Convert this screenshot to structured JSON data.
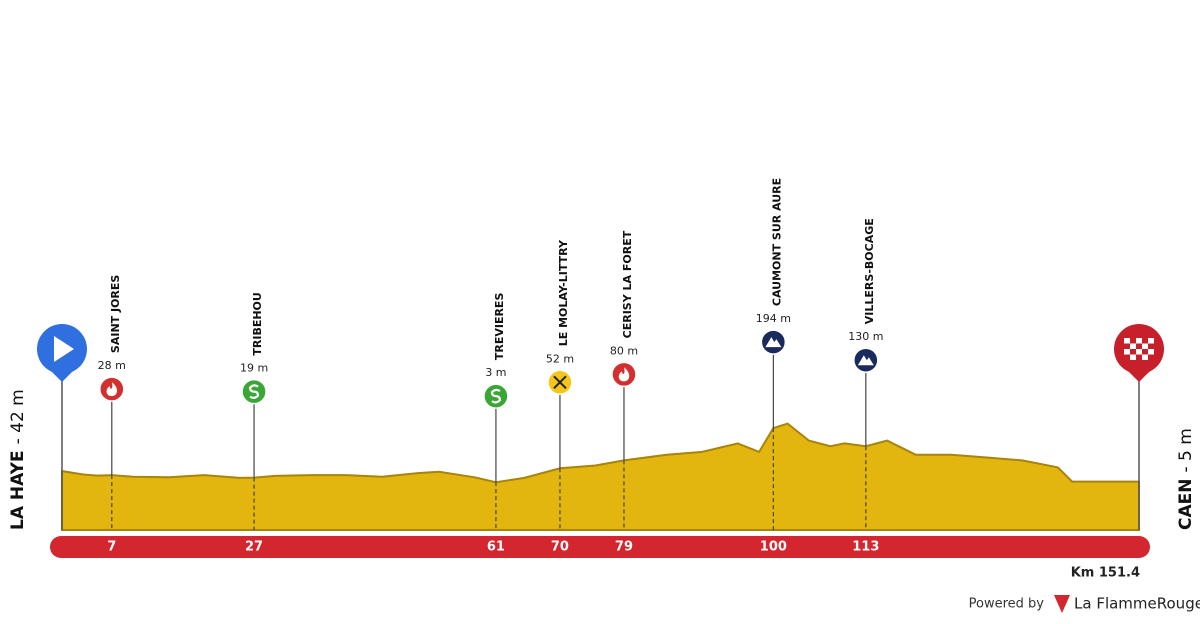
{
  "chart_data": {
    "type": "profile",
    "start": {
      "name": "LA HAYE",
      "elevation_label": "- 42 m"
    },
    "finish": {
      "name": "CAEN",
      "elevation_label": "- 5 m"
    },
    "distance_label": "Km 151.4",
    "x": [
      0,
      3,
      5,
      7,
      10,
      15,
      20,
      25,
      27,
      30,
      35,
      40,
      45,
      50,
      53,
      58,
      61,
      65,
      70,
      75,
      79,
      85,
      90,
      95,
      98,
      100,
      102,
      105,
      108,
      110,
      113,
      116,
      120,
      125,
      130,
      135,
      140,
      142,
      145,
      151.4
    ],
    "values": [
      42,
      30,
      26,
      28,
      22,
      20,
      28,
      18,
      19,
      25,
      28,
      28,
      22,
      35,
      40,
      20,
      3,
      18,
      52,
      62,
      80,
      100,
      110,
      140,
      110,
      194,
      210,
      150,
      130,
      140,
      130,
      150,
      100,
      100,
      90,
      80,
      55,
      5,
      5,
      5
    ],
    "color": "#e3b50f",
    "edge_color": "#a8840a",
    "waypoints": [
      {
        "name": "SAINT JORES",
        "km": 7,
        "elevation": 28,
        "elevation_label": "28 m",
        "icon": "flame",
        "color": "#d32f2f"
      },
      {
        "name": "TRIBEHOU",
        "km": 27,
        "elevation": 19,
        "elevation_label": "19 m",
        "icon": "sprint",
        "color": "#3aa635"
      },
      {
        "name": "TREVIERES",
        "km": 61,
        "elevation": 3,
        "elevation_label": "3 m",
        "icon": "sprint",
        "color": "#3aa635"
      },
      {
        "name": "LE MOLAY-LITTRY",
        "km": 70,
        "elevation": 52,
        "elevation_label": "52 m",
        "icon": "feed",
        "color": "#f5c518"
      },
      {
        "name": "CERISY LA FORET",
        "km": 79,
        "elevation": 80,
        "elevation_label": "80 m",
        "icon": "flame",
        "color": "#d32f2f"
      },
      {
        "name": "CAUMONT SUR AURE",
        "km": 100,
        "elevation": 194,
        "elevation_label": "194 m",
        "icon": "climb",
        "color": "#1b2a5e"
      },
      {
        "name": "Villers-Bocage",
        "km": 113,
        "elevation": 130,
        "elevation_label": "130 m",
        "icon": "climb",
        "color": "#1b2a5e"
      }
    ]
  },
  "footer": {
    "powered": "Powered by",
    "brand": "La FlammeRouge"
  }
}
